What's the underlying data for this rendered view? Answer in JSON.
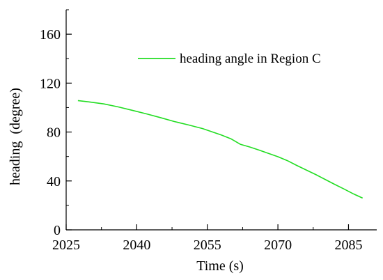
{
  "chart_data": {
    "type": "line",
    "title": "",
    "xlabel": "Time (s)",
    "ylabel": "heading  (degree)",
    "xlim": [
      2025,
      2091
    ],
    "ylim": [
      0,
      180
    ],
    "xticks": [
      2025,
      2040,
      2055,
      2070,
      2085
    ],
    "yticks": [
      0,
      40,
      80,
      120,
      160
    ],
    "grid": false,
    "legend": {
      "position": "top-right",
      "entries": [
        "heading angle in Region C"
      ]
    },
    "series": [
      {
        "name": "heading angle in Region C",
        "color": "#22dd22",
        "x": [
          2027.5,
          2030,
          2033,
          2036,
          2039,
          2042,
          2045,
          2048,
          2051,
          2054,
          2056,
          2058,
          2060,
          2062,
          2064,
          2066,
          2068,
          2070,
          2072,
          2074,
          2076,
          2078,
          2080,
          2082,
          2084,
          2086,
          2088
        ],
        "y": [
          105.7,
          104.6,
          103.0,
          100.6,
          97.8,
          94.9,
          91.8,
          88.6,
          85.8,
          82.8,
          80.2,
          77.5,
          74.5,
          70.0,
          67.8,
          65.2,
          62.5,
          59.8,
          56.6,
          52.7,
          49.0,
          45.3,
          41.3,
          37.3,
          33.5,
          29.5,
          26.0
        ]
      }
    ]
  }
}
